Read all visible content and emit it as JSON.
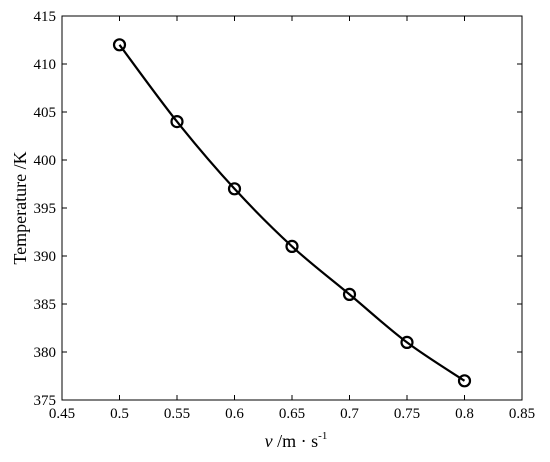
{
  "chart_data": {
    "type": "line",
    "x": [
      0.5,
      0.55,
      0.6,
      0.65,
      0.7,
      0.75,
      0.8
    ],
    "series": [
      {
        "values": [
          412,
          404,
          397,
          391,
          386,
          381,
          377
        ],
        "marker": "circle",
        "color": "#000000"
      }
    ],
    "xlabel_var": "v",
    "xlabel_unit": " /m · s",
    "xlabel_exp": "-1",
    "ylabel": "Temperature /K",
    "xlim": [
      0.45,
      0.85
    ],
    "ylim": [
      375,
      415
    ],
    "xticks": [
      "0.45",
      "0.5",
      "0.55",
      "0.6",
      "0.65",
      "0.7",
      "0.75",
      "0.8",
      "0.85"
    ],
    "yticks": [
      "375",
      "380",
      "385",
      "390",
      "395",
      "400",
      "405",
      "410",
      "415"
    ],
    "grid": false,
    "box": true
  }
}
